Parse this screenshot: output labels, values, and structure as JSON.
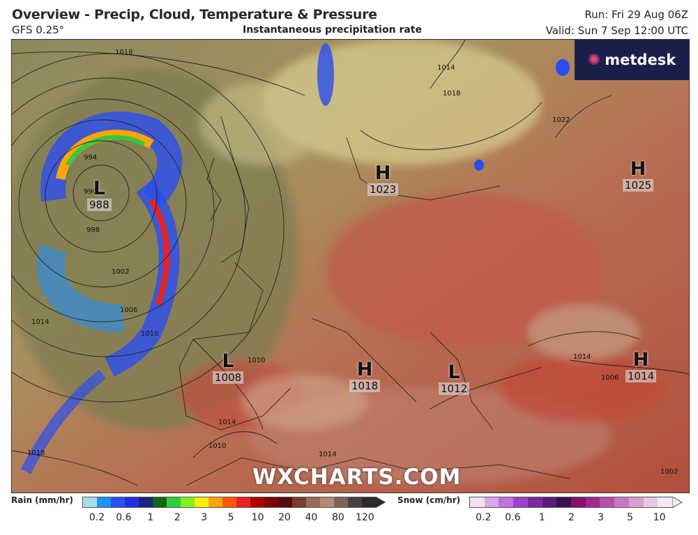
{
  "header": {
    "title": "Overview - Precip, Cloud, Temperature & Pressure",
    "model": "GFS 0.25°",
    "subtitle": "Instantaneous precipitation rate",
    "run": "Run: Fri 29 Aug 06Z",
    "valid": "Valid: Sun 7 Sep 12:00 UTC"
  },
  "logo": {
    "text": "metdesk",
    "icon": "burst-icon"
  },
  "watermark": "WXCHARTS.COM",
  "pressure_centres": [
    {
      "type": "L",
      "value": "988"
    },
    {
      "type": "H",
      "value": "1023"
    },
    {
      "type": "H",
      "value": "1025"
    },
    {
      "type": "L",
      "value": "1008"
    },
    {
      "type": "H",
      "value": "1018"
    },
    {
      "type": "L",
      "value": "1012"
    },
    {
      "type": "H",
      "value": "1014"
    }
  ],
  "isobar_labels": [
    "1018",
    "994",
    "990",
    "998",
    "1002",
    "1006",
    "1010",
    "1014",
    "1018",
    "1014",
    "1018",
    "1022",
    "1014",
    "1006",
    "1010",
    "1014",
    "1010",
    "1014",
    "1002"
  ],
  "legend": {
    "rain": {
      "label": "Rain (mm/hr)",
      "ticks": [
        "0.2",
        "0.6",
        "1",
        "2",
        "3",
        "5",
        "10",
        "20",
        "40",
        "80",
        "120"
      ],
      "colors": [
        "#a8dce8",
        "#1e90ff",
        "#2a4ef0",
        "#1f2ee0",
        "#1a237e",
        "#0b6b0b",
        "#2ecc40",
        "#80f020",
        "#f8f000",
        "#ffa500",
        "#ff5a00",
        "#ee2020",
        "#b00000",
        "#800000",
        "#5a0a0a",
        "#7a3b30",
        "#9a6a58",
        "#b08a70",
        "#7a6558",
        "#4a4040",
        "#2e2a2a"
      ]
    },
    "snow": {
      "label": "Snow (cm/hr)",
      "ticks": [
        "0.2",
        "0.6",
        "1",
        "2",
        "3",
        "5",
        "10"
      ],
      "colors": [
        "#f3e0f3",
        "#d8a8e8",
        "#c070e0",
        "#a040d0",
        "#7a2aa0",
        "#5a1a80",
        "#3a1050",
        "#8a1070",
        "#a02890",
        "#b850a8",
        "#c878c0",
        "#d8a0d0",
        "#e8c8e4",
        "#f5e8f5"
      ]
    }
  }
}
